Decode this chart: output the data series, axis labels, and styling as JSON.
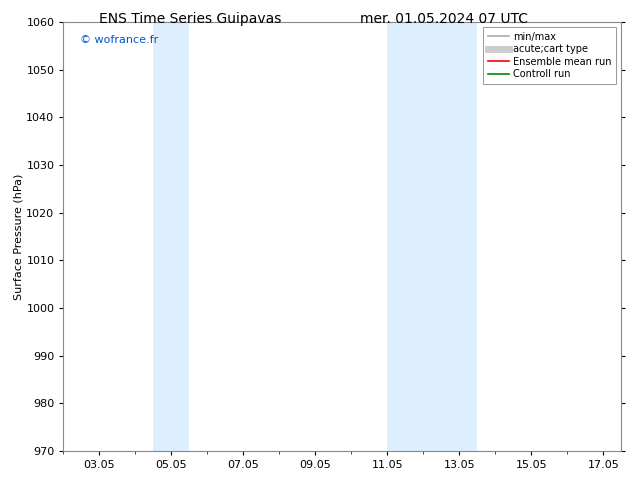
{
  "title_left": "ENS Time Series Guipavas",
  "title_right": "mer. 01.05.2024 07 UTC",
  "ylabel": "Surface Pressure (hPa)",
  "ylim": [
    970,
    1060
  ],
  "yticks": [
    970,
    980,
    990,
    1000,
    1010,
    1020,
    1030,
    1040,
    1050,
    1060
  ],
  "xtick_labels": [
    "03.05",
    "05.05",
    "07.05",
    "09.05",
    "11.05",
    "13.05",
    "15.05",
    "17.05"
  ],
  "xtick_positions": [
    3,
    5,
    7,
    9,
    11,
    13,
    15,
    17
  ],
  "xlim": [
    2.0,
    17.5
  ],
  "shaded_bands": [
    {
      "xmin": 4.5,
      "xmax": 5.5
    },
    {
      "xmin": 11.0,
      "xmax": 12.0
    },
    {
      "xmin": 12.0,
      "xmax": 13.5
    }
  ],
  "shaded_color": "#ddeeff",
  "watermark_text": "© wofrance.fr",
  "watermark_color": "#0055cc",
  "legend_entries": [
    {
      "label": "min/max",
      "color": "#aaaaaa",
      "lw": 1.2,
      "style": "solid"
    },
    {
      "label": "acute;cart type",
      "color": "#cccccc",
      "lw": 5,
      "style": "solid"
    },
    {
      "label": "Ensemble mean run",
      "color": "#ff0000",
      "lw": 1.2,
      "style": "solid"
    },
    {
      "label": "Controll run",
      "color": "#008800",
      "lw": 1.2,
      "style": "solid"
    }
  ],
  "background_color": "#ffffff",
  "spine_color": "#888888",
  "title_fontsize": 10,
  "tick_fontsize": 8,
  "ylabel_fontsize": 8,
  "watermark_fontsize": 8,
  "legend_fontsize": 7
}
